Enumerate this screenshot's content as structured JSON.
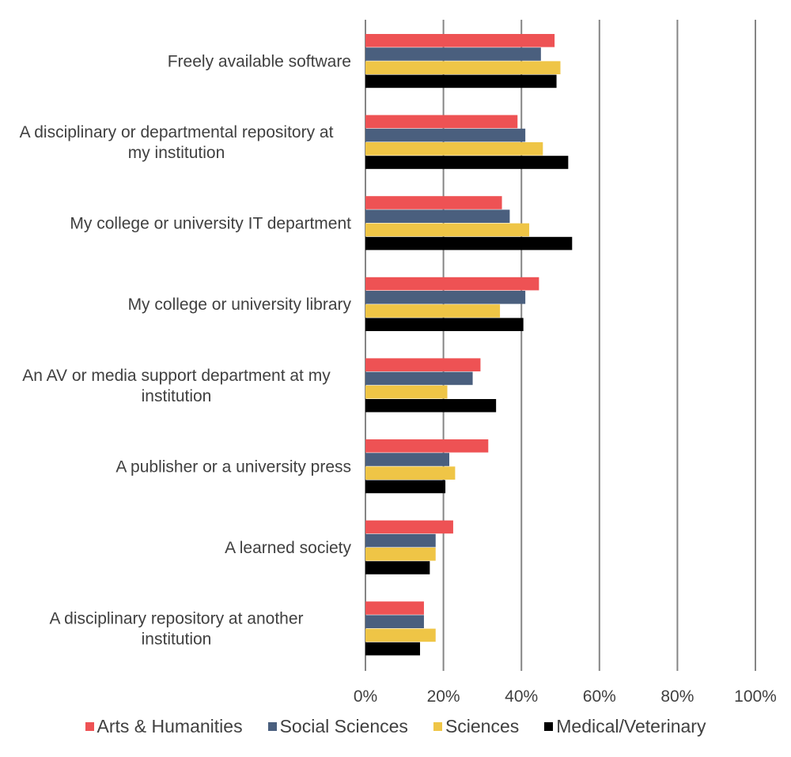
{
  "chart_data": {
    "type": "bar",
    "orientation": "horizontal",
    "title": "",
    "xlabel": "",
    "ylabel": "",
    "xlim": [
      0,
      100
    ],
    "x_ticks": [
      "0%",
      "20%",
      "40%",
      "60%",
      "80%",
      "100%"
    ],
    "x_tick_values": [
      0,
      20,
      40,
      60,
      80,
      100
    ],
    "grid": true,
    "legend_position": "bottom",
    "categories": [
      [
        "Freely available software"
      ],
      [
        "A disciplinary or departmental repository at",
        "my institution"
      ],
      [
        "My college or university IT department"
      ],
      [
        "My college or university library"
      ],
      [
        "An AV or media support department at my",
        "institution"
      ],
      [
        "A publisher or a university press"
      ],
      [
        "A learned society"
      ],
      [
        "A disciplinary repository at another",
        "institution"
      ]
    ],
    "series": [
      {
        "name": "Arts & Humanities",
        "color": "#EE5254",
        "values": [
          48.5,
          39,
          35,
          44.5,
          29.5,
          31.5,
          22.5,
          15
        ]
      },
      {
        "name": "Social Sciences",
        "color": "#4A5F7E",
        "values": [
          45,
          41,
          37,
          41,
          27.5,
          21.5,
          18,
          15
        ]
      },
      {
        "name": "Sciences",
        "color": "#EFC546",
        "values": [
          50,
          45.5,
          42,
          34.5,
          21,
          23,
          18,
          18
        ]
      },
      {
        "name": "Medical/Veterinary",
        "color": "#000000",
        "values": [
          49,
          52,
          53,
          40.5,
          33.5,
          20.5,
          16.5,
          14
        ]
      }
    ]
  }
}
